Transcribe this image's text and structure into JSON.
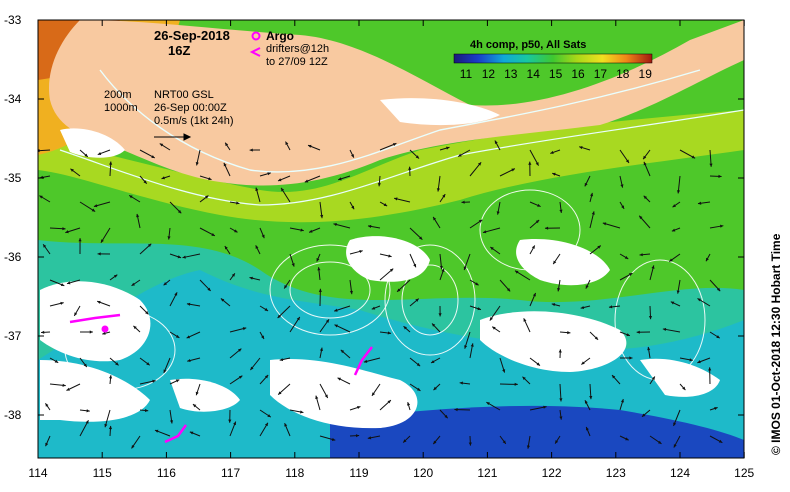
{
  "map": {
    "date_title": "26-Sep-2018",
    "time_title": "16Z",
    "argo_label": "Argo",
    "drifters_line1": "drifters@12h",
    "drifters_line2": "to 27/09 12Z",
    "colorbar_title": "4h comp, p50, All Sats",
    "colorbar_ticks": [
      "11",
      "12",
      "13",
      "14",
      "15",
      "16",
      "17",
      "18",
      "19"
    ],
    "contour_200": "200m",
    "contour_1000": "1000m",
    "current_line1": "NRT00 GSL",
    "current_line2": "26-Sep 00:00Z",
    "current_line3": "0.5m/s (1kt 24h)",
    "credit": "© IMOS 01-Oct-2018 12:30 Hobart Time",
    "lat_ticks": [
      "-33",
      "-34",
      "-35",
      "-36",
      "-37",
      "-38"
    ],
    "lon_ticks": [
      "114",
      "115",
      "116",
      "117",
      "118",
      "119",
      "120",
      "121",
      "122",
      "123",
      "124",
      "125"
    ],
    "colors": {
      "land": "#f8c9a0",
      "cloud": "#ffffff",
      "sst_cold": "#1a2fa8",
      "sst_mid": "#1ec4b4",
      "sst_warm": "#4ec82a",
      "sst_hot": "#f0e020",
      "argo": "#ff00ff",
      "drifter": "#ff00ff"
    }
  }
}
